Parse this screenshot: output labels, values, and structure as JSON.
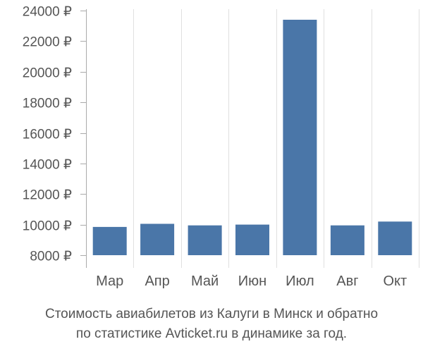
{
  "chart_data": {
    "type": "bar",
    "categories": [
      "Мар",
      "Апр",
      "Май",
      "Июн",
      "Июл",
      "Авг",
      "Окт"
    ],
    "values": [
      9850,
      10050,
      9950,
      10000,
      23400,
      9950,
      10200
    ],
    "ylim": [
      8000,
      24000
    ],
    "yticks": [
      8000,
      10000,
      12000,
      14000,
      16000,
      18000,
      20000,
      22000,
      24000
    ],
    "ytick_labels": [
      "8000 ₽",
      "10000 ₽",
      "12000 ₽",
      "14000 ₽",
      "16000 ₽",
      "18000 ₽",
      "20000 ₽",
      "22000 ₽",
      "24000 ₽"
    ],
    "grid": "vertical",
    "bar_color": "#4a76a8",
    "grid_color": "#e0e0e0",
    "axis_color": "#aaaaaa",
    "label_color": "#555555"
  },
  "caption": {
    "line1": "Стоимость авиабилетов из Калуги в Минск и обратно",
    "line2": "по статистике Avticket.ru в динамике за год."
  }
}
